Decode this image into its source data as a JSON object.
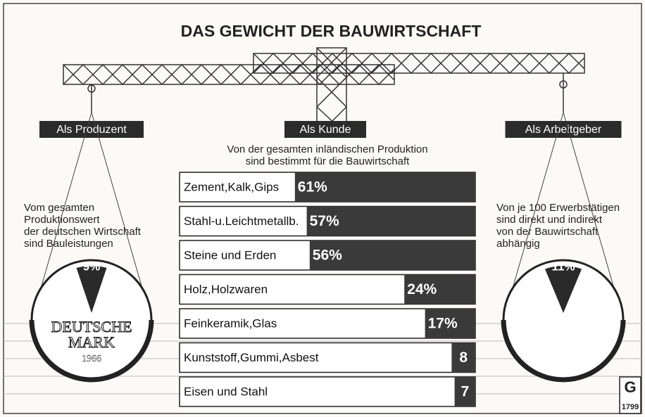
{
  "title": "DAS GEWICHT DER BAUWIRTSCHAFT",
  "chart_data": [
    {
      "type": "bar",
      "orientation": "horizontal",
      "title": "Als Kunde",
      "subtitle": [
        "Von der gesamten inländischen Produktion",
        "sind bestimmt für die Bauwirtschaft"
      ],
      "categories": [
        "Zement,Kalk,Gips",
        "Stahl-u.Leichtmetallb.",
        "Steine und Erden",
        "Holz,Holzwaren",
        "Feinkeramik,Glas",
        "Kunststoff,Gummi,Asbest",
        "Eisen und Stahl"
      ],
      "values": [
        61,
        57,
        56,
        24,
        17,
        8,
        7
      ],
      "value_labels": [
        "61%",
        "57%",
        "56%",
        "24%",
        "17%",
        "8",
        "7"
      ],
      "xlim": [
        0,
        100
      ],
      "color": "#3a3a3a"
    },
    {
      "type": "pie",
      "title": "Als Produzent",
      "subtitle": [
        "Vom gesamten",
        "Produktionswert",
        "der deutschen Wirtschaft",
        "sind Bauleistungen"
      ],
      "values": [
        9
      ],
      "value_labels": [
        "9%"
      ],
      "color": "#2a2a2a",
      "annotations": [
        "DEUTSCHE",
        "MARK",
        "1966"
      ]
    },
    {
      "type": "pie",
      "title": "Als Arbeitgeber",
      "subtitle": [
        "Von je 100 Erwerbstätigen",
        "sind direkt und indirekt",
        "von der Bauwirtschaft",
        "abhängig"
      ],
      "values": [
        11
      ],
      "value_labels": [
        "11%"
      ],
      "color": "#2a2a2a"
    }
  ],
  "logo": {
    "letter": "G",
    "number": "1799"
  }
}
